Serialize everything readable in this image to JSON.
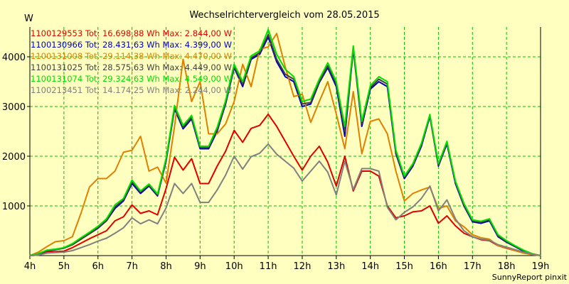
{
  "colors": {
    "background": "#ffffc0",
    "grid": "#00c000",
    "axis": "#000000"
  },
  "footer": "SunnyReport pinxit",
  "chart_data": {
    "type": "line",
    "title": "Wechselrichtervergleich vom 28.05.2015",
    "ylabel": "W",
    "xlabel": "",
    "xlim": [
      4,
      19
    ],
    "ylim": [
      0,
      4600
    ],
    "x_ticks": [
      4,
      5,
      6,
      7,
      8,
      9,
      10,
      11,
      12,
      13,
      14,
      15,
      16,
      17,
      18,
      19
    ],
    "x_tick_labels": [
      "4h",
      "5h",
      "6h",
      "7h",
      "8h",
      "9h",
      "10h",
      "11h",
      "12h",
      "13h",
      "14h",
      "15h",
      "16h",
      "17h",
      "18h",
      "19h"
    ],
    "y_ticks": [
      1000,
      2000,
      3000,
      4000
    ],
    "y_tick_labels": [
      "1000",
      "2000",
      "3000",
      "4000"
    ],
    "grid": true,
    "legend_position": "top-left",
    "x": [
      4.0,
      4.25,
      4.5,
      4.75,
      5.0,
      5.25,
      5.5,
      5.75,
      6.0,
      6.25,
      6.5,
      6.75,
      7.0,
      7.25,
      7.5,
      7.75,
      8.0,
      8.25,
      8.5,
      8.75,
      9.0,
      9.25,
      9.5,
      9.75,
      10.0,
      10.25,
      10.5,
      10.75,
      11.0,
      11.25,
      11.5,
      11.75,
      12.0,
      12.25,
      12.5,
      12.75,
      13.0,
      13.25,
      13.5,
      13.75,
      14.0,
      14.25,
      14.5,
      14.75,
      15.0,
      15.25,
      15.5,
      15.75,
      16.0,
      16.25,
      16.5,
      16.75,
      17.0,
      17.25,
      17.5,
      17.75,
      18.0,
      18.25,
      18.5,
      18.75,
      19.0
    ],
    "series": [
      {
        "name": "1100129553 Tot: 16.698,88 Wh Max: 2.844,00 W",
        "color": "#e00000",
        "values": [
          0,
          10,
          80,
          80,
          90,
          160,
          250,
          340,
          420,
          500,
          700,
          780,
          1020,
          850,
          900,
          820,
          1350,
          1980,
          1720,
          1950,
          1450,
          1450,
          1800,
          2100,
          2520,
          2280,
          2560,
          2620,
          2844,
          2600,
          2300,
          2000,
          1720,
          2000,
          2200,
          1880,
          1400,
          2000,
          1300,
          1700,
          1700,
          1600,
          1000,
          760,
          800,
          880,
          900,
          1000,
          650,
          800,
          600,
          450,
          380,
          320,
          300,
          200,
          150,
          100,
          60,
          30,
          0
        ]
      },
      {
        "name": "1100130966 Tot: 28.431,63 Wh Max: 4.399,00 W",
        "color": "#0000c0",
        "values": [
          0,
          30,
          100,
          120,
          150,
          220,
          330,
          440,
          550,
          700,
          950,
          1100,
          1450,
          1250,
          1400,
          1200,
          1900,
          2950,
          2550,
          2750,
          2150,
          2150,
          2500,
          3050,
          3780,
          3400,
          3950,
          4050,
          4399,
          3900,
          3600,
          3500,
          3000,
          3050,
          3480,
          3780,
          3400,
          2400,
          4150,
          2600,
          3350,
          3500,
          3400,
          2050,
          1550,
          1800,
          2200,
          2800,
          1800,
          2250,
          1450,
          1000,
          680,
          650,
          700,
          380,
          270,
          180,
          90,
          30,
          0
        ]
      },
      {
        "name": "1100131008 Tot: 29.114,38 Wh Max: 4.470,00 W",
        "color": "#e08000",
        "values": [
          0,
          70,
          180,
          280,
          300,
          380,
          850,
          1380,
          1550,
          1550,
          1700,
          2080,
          2120,
          2400,
          1700,
          1780,
          1460,
          2600,
          3950,
          3100,
          3500,
          2450,
          2450,
          2650,
          3100,
          3850,
          3400,
          4150,
          4200,
          4470,
          3800,
          3200,
          3250,
          2680,
          3100,
          3500,
          2850,
          2150,
          3300,
          2050,
          2700,
          2750,
          2450,
          1700,
          1100,
          1250,
          1320,
          1380,
          950,
          1000,
          700,
          580,
          420,
          360,
          330,
          200,
          160,
          100,
          50,
          20,
          0
        ]
      },
      {
        "name": "1100131025 Tot: 28.575,63 Wh Max: 4.449,00 W",
        "color": "#404040",
        "values": [
          0,
          30,
          100,
          120,
          150,
          220,
          330,
          440,
          560,
          700,
          980,
          1120,
          1480,
          1280,
          1420,
          1220,
          1920,
          2980,
          2580,
          2780,
          2180,
          2180,
          2530,
          3080,
          3800,
          3450,
          3980,
          4080,
          4449,
          3950,
          3650,
          3550,
          3050,
          3080,
          3500,
          3820,
          3450,
          2500,
          4180,
          2650,
          3380,
          3550,
          3450,
          2080,
          1580,
          1820,
          2230,
          2820,
          1820,
          2280,
          1480,
          1020,
          700,
          670,
          720,
          400,
          280,
          190,
          100,
          35,
          0
        ]
      },
      {
        "name": "1100131074 Tot: 29.324,63 Wh Max: 4.549,00 W",
        "color": "#00e000",
        "values": [
          0,
          40,
          110,
          130,
          160,
          240,
          360,
          470,
          590,
          740,
          1020,
          1150,
          1520,
          1300,
          1440,
          1240,
          1960,
          3020,
          2620,
          2820,
          2200,
          2200,
          2580,
          3120,
          3850,
          3500,
          4020,
          4120,
          4549,
          4050,
          3750,
          3600,
          3100,
          3150,
          3550,
          3880,
          3500,
          2600,
          4220,
          2700,
          3420,
          3600,
          3500,
          2120,
          1600,
          1850,
          2260,
          2840,
          1850,
          2300,
          1500,
          1050,
          720,
          690,
          740,
          420,
          300,
          200,
          110,
          40,
          0
        ]
      },
      {
        "name": "1100213451 Tot: 14.174,25 Wh Max: 2.244,00 W",
        "color": "#808080",
        "values": [
          0,
          10,
          50,
          60,
          70,
          100,
          160,
          220,
          290,
          350,
          450,
          560,
          760,
          640,
          720,
          640,
          960,
          1450,
          1250,
          1450,
          1070,
          1070,
          1320,
          1620,
          2000,
          1740,
          1990,
          2060,
          2244,
          2040,
          1900,
          1760,
          1500,
          1700,
          1900,
          1680,
          1220,
          1900,
          1330,
          1750,
          1750,
          1700,
          970,
          720,
          870,
          980,
          1150,
          1400,
          900,
          1120,
          740,
          500,
          380,
          330,
          310,
          220,
          170,
          120,
          70,
          30,
          0
        ]
      }
    ]
  }
}
